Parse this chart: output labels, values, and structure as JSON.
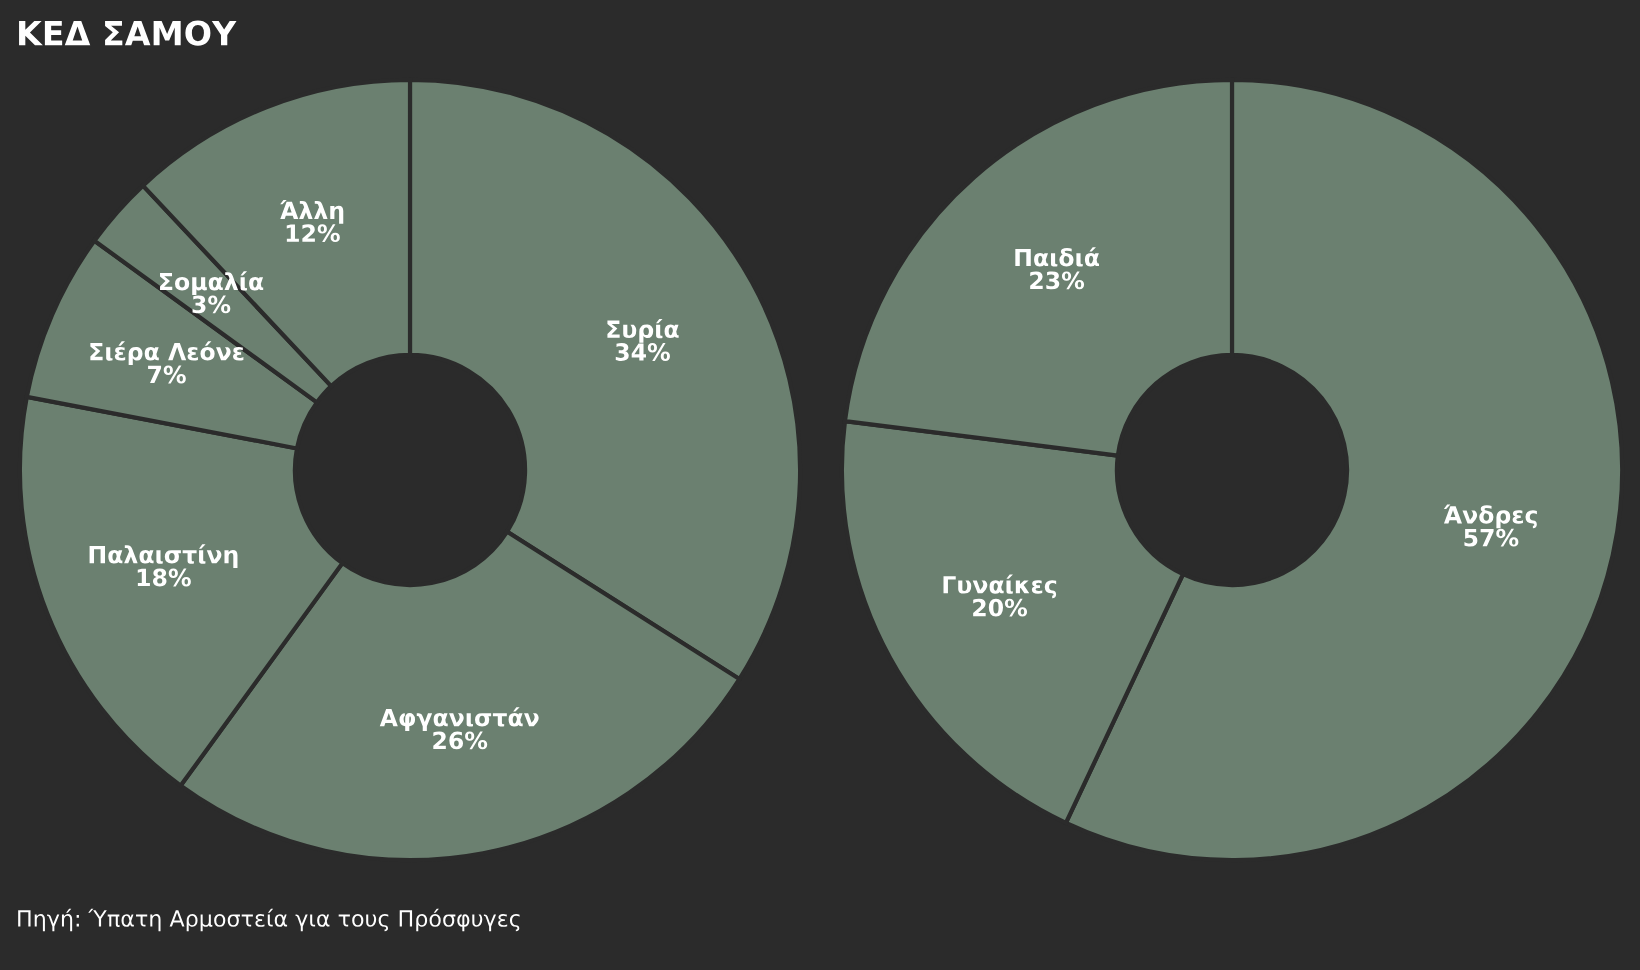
{
  "chart_data": [
    {
      "type": "donut",
      "title": "ΚΕΔ ΣΑΜΟΥ",
      "annotations": [
        "Πηγή: Ύπατη Αρμοστεία για τους Πρόσφυγες"
      ],
      "categories": [
        "Συρία",
        "Αφγανιστάν",
        "Παλαιστίνη",
        "Σιέρα Λεόνε",
        "Σομαλία",
        "Άλλη"
      ],
      "values": [
        34,
        26,
        18,
        7,
        3,
        12
      ],
      "value_labels": [
        "34%",
        "26%",
        "18%",
        "7%",
        "3%",
        "12%"
      ],
      "colors": [
        "#6b8070",
        "#6b8070",
        "#6b8070",
        "#6b8070",
        "#6b8070",
        "#6b8070"
      ]
    },
    {
      "type": "donut",
      "categories": [
        "Άνδρες",
        "Γυναίκες",
        "Παιδιά"
      ],
      "values": [
        57,
        20,
        23
      ],
      "value_labels": [
        "57%",
        "20%",
        "23%"
      ],
      "colors": [
        "#6b8070",
        "#6b8070",
        "#6b8070"
      ]
    }
  ]
}
